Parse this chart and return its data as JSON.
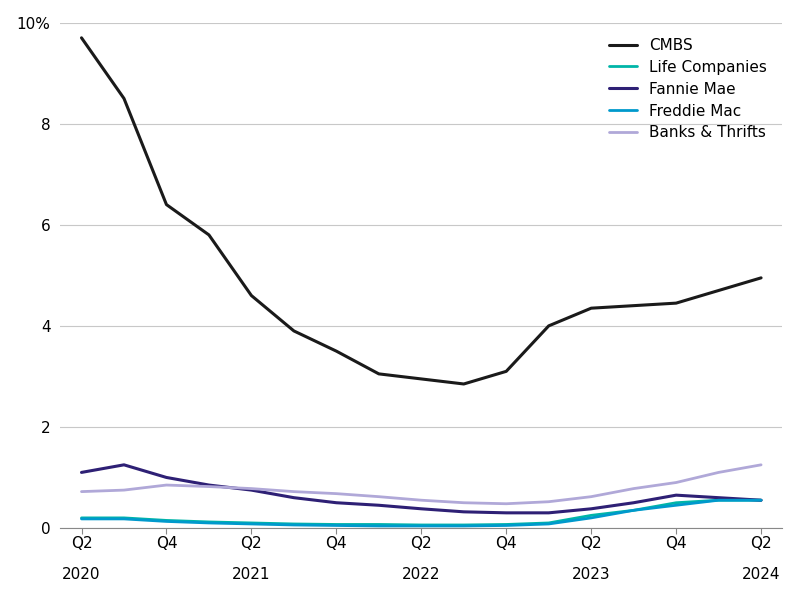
{
  "series": {
    "CMBS": {
      "color": "#1a1a1a",
      "linewidth": 2.2,
      "values": [
        9.7,
        8.5,
        6.4,
        5.8,
        4.6,
        3.9,
        3.5,
        3.05,
        2.95,
        2.85,
        3.1,
        4.0,
        4.35,
        4.4,
        4.45,
        4.7,
        4.95
      ]
    },
    "Life Companies": {
      "color": "#00b5a8",
      "linewidth": 2.0,
      "values": [
        0.2,
        0.2,
        0.15,
        0.12,
        0.1,
        0.08,
        0.07,
        0.07,
        0.06,
        0.06,
        0.07,
        0.1,
        0.25,
        0.35,
        0.5,
        0.55,
        0.55
      ]
    },
    "Fannie Mae": {
      "color": "#2e2075",
      "linewidth": 2.2,
      "values": [
        1.1,
        1.25,
        1.0,
        0.85,
        0.75,
        0.6,
        0.5,
        0.45,
        0.38,
        0.32,
        0.3,
        0.3,
        0.38,
        0.5,
        0.65,
        0.6,
        0.55
      ]
    },
    "Freddie Mac": {
      "color": "#0099cc",
      "linewidth": 2.0,
      "values": [
        0.18,
        0.18,
        0.13,
        0.1,
        0.08,
        0.06,
        0.05,
        0.04,
        0.04,
        0.04,
        0.05,
        0.08,
        0.2,
        0.35,
        0.45,
        0.55,
        0.55
      ]
    },
    "Banks & Thrifts": {
      "color": "#b0a8d8",
      "linewidth": 2.0,
      "values": [
        0.72,
        0.75,
        0.85,
        0.82,
        0.78,
        0.72,
        0.68,
        0.62,
        0.55,
        0.5,
        0.48,
        0.52,
        0.62,
        0.78,
        0.9,
        1.1,
        1.25
      ]
    }
  },
  "n_points": 17,
  "ylim": [
    0,
    10
  ],
  "ytick_values": [
    0,
    2,
    4,
    6,
    8,
    10
  ],
  "ytick_labels": [
    "0",
    "2",
    "4",
    "6",
    "8",
    "10%"
  ],
  "x_tick_positions": [
    0,
    2,
    4,
    6,
    8,
    10,
    12,
    14,
    16
  ],
  "x_tick_q_labels": [
    "Q2",
    "Q4",
    "Q2",
    "Q4",
    "Q2",
    "Q4",
    "Q2",
    "Q4",
    "Q2"
  ],
  "x_year_positions": [
    0,
    4,
    8,
    12,
    16
  ],
  "x_year_labels": [
    "2020",
    "2021",
    "2022",
    "2023",
    "2024"
  ],
  "background_color": "#ffffff",
  "grid_color": "#c8c8c8",
  "legend_names": [
    "CMBS",
    "Life Companies",
    "Fannie Mae",
    "Freddie Mac",
    "Banks & Thrifts"
  ]
}
